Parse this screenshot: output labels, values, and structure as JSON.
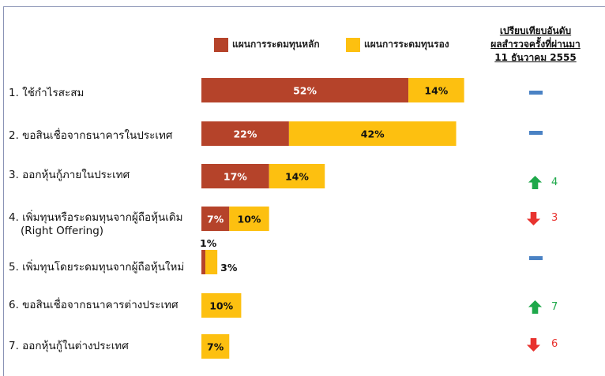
{
  "chart_data": {
    "type": "bar",
    "orientation": "horizontal",
    "stacked": true,
    "categories": [
      "1. ใช้กำไรสะสม",
      "2. ขอสินเชื่อจากธนาคารในประเทศ",
      "3. ออกหุ้นกู้ภายในประเทศ",
      "4. เพิ่มทุนหรือระดมทุนจากผู้ถือหุ้นเดิม (Right Offering)",
      "5. เพิ่มทุนโดยระดมทุนจากผู้ถือหุ้นใหม่",
      "6. ขอสินเชื่อจากธนาคารต่างประเทศ",
      "7. ออกหุ้นกู้ในต่างประเทศ"
    ],
    "series": [
      {
        "name": "แผนการระดมทุนหลัก",
        "color": "#b5432a",
        "values": [
          52,
          22,
          17,
          7,
          1,
          0,
          0
        ]
      },
      {
        "name": "แผนการระดมทุนรอง",
        "color": "#fdc010",
        "values": [
          14,
          42,
          14,
          10,
          3,
          10,
          7
        ]
      }
    ],
    "value_suffix": "%",
    "legend_position": "top",
    "grid": false,
    "comparison": {
      "title_lines": [
        "เปรียบเทียบอันดับ",
        "ผลสำรวจครั้งที่ผ่านมา",
        "11 ธันวาคม 2555"
      ],
      "items": [
        {
          "change": "same",
          "text": ""
        },
        {
          "change": "same",
          "text": ""
        },
        {
          "change": "up",
          "text": "4"
        },
        {
          "change": "down",
          "text": "3"
        },
        {
          "change": "same",
          "text": ""
        },
        {
          "change": "up",
          "text": "7"
        },
        {
          "change": "down",
          "text": "6"
        }
      ]
    }
  },
  "colors": {
    "primary": "#b5432a",
    "secondary": "#fdc010",
    "up": "#1ea84a",
    "down": "#e8332f",
    "same": "#4a82c4",
    "frame": "#8a93b5"
  },
  "labels": {
    "row1": "1. ใช้กำไรสะสม",
    "row2": "2. ขอสินเชื่อจากธนาคารในประเทศ",
    "row3": "3. ออกหุ้นกู้ภายในประเทศ",
    "row4_line1": "4. เพิ่มทุนหรือระดมทุนจากผู้ถือหุ้นเดิม",
    "row4_line2": "(Right Offering)",
    "row5": "5. เพิ่มทุนโดยระดมทุนจากผู้ถือหุ้นใหม่",
    "row6": "6. ขอสินเชื่อจากธนาคารต่างประเทศ",
    "row7": "7. ออกหุ้นกู้ในต่างประเทศ"
  },
  "legend": {
    "primary": "แผนการระดมทุนหลัก",
    "secondary": "แผนการระดมทุนรอง"
  },
  "header": {
    "line1": "เปรียบเทียบอันดับ",
    "line2": "ผลสำรวจครั้งที่ผ่านมา",
    "line3": "11 ธันวาคม 2555"
  },
  "ranks": {
    "r3": "4",
    "r4": "3",
    "r6": "7",
    "r7": "6"
  }
}
